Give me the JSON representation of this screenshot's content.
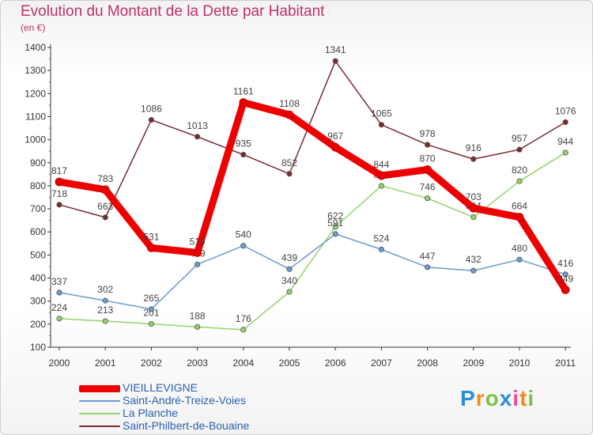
{
  "header": {
    "title": "Evolution du Montant de la Dette par Habitant",
    "subtitle": "(en €)"
  },
  "logo": {
    "letters": [
      "P",
      "r",
      "o",
      "x",
      "i",
      "t",
      "i"
    ],
    "colors": [
      "#2a8fd6",
      "#f08a1d",
      "#7cc242",
      "#2a8fd6",
      "#e94e9a",
      "#f08a1d",
      "#7cc242"
    ]
  },
  "chart_data": {
    "type": "line",
    "x": [
      "2000",
      "2001",
      "2002",
      "2003",
      "2004",
      "2005",
      "2006",
      "2007",
      "2008",
      "2009",
      "2010",
      "2011"
    ],
    "ylim": [
      100,
      1400
    ],
    "yticks": [
      "100",
      "200",
      "300",
      "400",
      "500",
      "600",
      "700",
      "800",
      "900",
      "1000",
      "1100",
      "1200",
      "1300",
      "1400"
    ],
    "grid": false,
    "legend_position": "bottom-left",
    "series": [
      {
        "name": "Saint-Philbert-de-Bouaine",
        "color": "#7a2a2f",
        "values": [
          718,
          663,
          1086,
          1013,
          935,
          852,
          1341,
          1065,
          978,
          916,
          957,
          1076
        ]
      },
      {
        "name": "La Planche",
        "color": "#93d36a",
        "values": [
          224,
          213,
          201,
          188,
          176,
          340,
          622,
          800,
          746,
          664,
          820,
          944
        ]
      },
      {
        "name": "Saint-André-Treize-Voies",
        "color": "#6c9ccf",
        "values": [
          337,
          302,
          265,
          459,
          540,
          439,
          591,
          524,
          447,
          432,
          480,
          416
        ]
      },
      {
        "name": "VIEILLEVIGNE",
        "color": "#ee0000",
        "values": [
          817,
          783,
          531,
          510,
          1161,
          1108,
          967,
          844,
          870,
          703,
          664,
          349
        ]
      }
    ],
    "legend_order": [
      "VIEILLEVIGNE",
      "Saint-André-Treize-Voies",
      "La Planche",
      "Saint-Philbert-de-Bouaine"
    ]
  }
}
